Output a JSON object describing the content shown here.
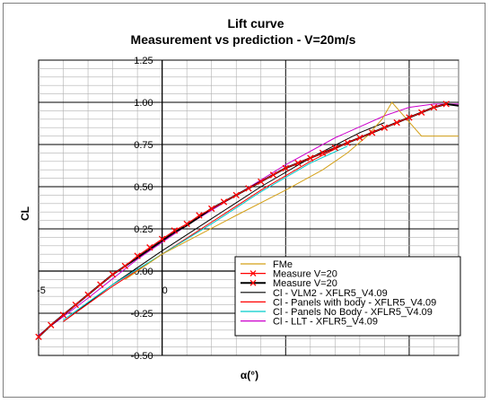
{
  "chart_data": {
    "type": "line",
    "title": "Lift curve",
    "subtitle": "Measurement vs prediction - V=20m/s",
    "xlabel": "α(°)",
    "ylabel": "CL",
    "xlim": [
      -5,
      12
    ],
    "ylim": [
      -0.5,
      1.25
    ],
    "x_ticks": [
      -5,
      0
    ],
    "x_tick_labels": [
      "-5",
      "0"
    ],
    "y_ticks": [
      -0.5,
      -0.25,
      0,
      0.25,
      0.5,
      0.75,
      1.0,
      1.25
    ],
    "y_tick_labels": [
      "-0.50",
      "-0.25",
      "0.00",
      "0.25",
      "0.50",
      "0.75",
      "1.00",
      "1.25"
    ],
    "grid": true,
    "legend_position": "bottom-right",
    "series": [
      {
        "name": "FMe",
        "color": "#d4a017",
        "marker": "none",
        "x": [
          -1.5,
          0,
          3,
          5,
          6.5,
          7.5,
          8.3,
          8.9,
          9.3,
          10.5,
          12
        ],
        "y": [
          -0.05,
          0.1,
          0.33,
          0.48,
          0.6,
          0.7,
          0.8,
          0.9,
          1.0,
          0.8,
          0.8
        ]
      },
      {
        "name": "Measure V=20",
        "color": "#ff0000",
        "marker": "x",
        "x": [
          -5,
          -4.5,
          -4,
          -3.5,
          -3,
          -2.5,
          -2,
          -1.5,
          -1,
          -0.5,
          0,
          0.5,
          1,
          1.5,
          2,
          2.5,
          3,
          3.5,
          4,
          4.5,
          5,
          5.5,
          6,
          6.5,
          7,
          7.5,
          8,
          8.5,
          9,
          9.5,
          10,
          10.5,
          11,
          11.5
        ],
        "y": [
          -0.39,
          -0.32,
          -0.26,
          -0.2,
          -0.14,
          -0.08,
          -0.02,
          0.03,
          0.09,
          0.14,
          0.19,
          0.24,
          0.28,
          0.33,
          0.37,
          0.41,
          0.45,
          0.49,
          0.53,
          0.57,
          0.61,
          0.64,
          0.67,
          0.7,
          0.73,
          0.76,
          0.79,
          0.82,
          0.85,
          0.88,
          0.91,
          0.94,
          0.97,
          0.99
        ]
      },
      {
        "name": "Measure V=20",
        "color": "#000000",
        "marker": "x",
        "x": [
          -5,
          -4.5,
          -4,
          -3.5,
          -3,
          -2.5,
          -2,
          -1.5,
          -1,
          -0.5,
          0,
          0.5,
          1,
          1.5,
          2,
          2.5,
          3,
          3.5,
          4,
          4.5,
          5,
          5.5,
          6,
          6.5,
          7,
          7.5,
          8,
          8.5,
          9,
          9.5,
          10,
          10.5,
          11,
          11.5,
          12
        ],
        "y": [
          -0.39,
          -0.32,
          -0.26,
          -0.2,
          -0.14,
          -0.08,
          -0.02,
          0.03,
          0.08,
          0.13,
          0.18,
          0.23,
          0.27,
          0.32,
          0.37,
          0.41,
          0.45,
          0.49,
          0.53,
          0.57,
          0.61,
          0.64,
          0.67,
          0.7,
          0.73,
          0.76,
          0.79,
          0.82,
          0.85,
          0.88,
          0.91,
          0.94,
          0.97,
          0.99,
          0.98
        ]
      },
      {
        "name": "Cl - VLM2 - XFLR5_V4.09",
        "color": "#000000",
        "marker": "none",
        "x": [
          -4,
          -2,
          0,
          2,
          4,
          6,
          8,
          9
        ],
        "y": [
          -0.3,
          -0.08,
          0.12,
          0.31,
          0.5,
          0.67,
          0.82,
          0.88
        ]
      },
      {
        "name": "Cl - Panels with body - XFLR5_V4.09",
        "color": "#ff0000",
        "marker": "none",
        "x": [
          -4,
          -2,
          0,
          2,
          4,
          6,
          7.5
        ],
        "y": [
          -0.3,
          -0.09,
          0.1,
          0.29,
          0.48,
          0.65,
          0.76
        ]
      },
      {
        "name": "Cl - Panels No Body - XFLR5_V4.09",
        "color": "#00cccc",
        "marker": "none",
        "x": [
          -4,
          -2,
          0,
          2,
          4,
          6,
          7.5
        ],
        "y": [
          -0.29,
          -0.08,
          0.1,
          0.28,
          0.47,
          0.64,
          0.74
        ]
      },
      {
        "name": "Cl - LLT - XFLR5_V4.09",
        "color": "#cc00cc",
        "marker": "none",
        "x": [
          -5,
          -3,
          -1,
          0,
          1,
          3,
          5,
          7,
          9,
          10,
          11,
          12
        ],
        "y": [
          -0.38,
          -0.16,
          0.07,
          0.17,
          0.27,
          0.45,
          0.63,
          0.79,
          0.92,
          0.97,
          0.99,
          0.99
        ]
      }
    ]
  }
}
